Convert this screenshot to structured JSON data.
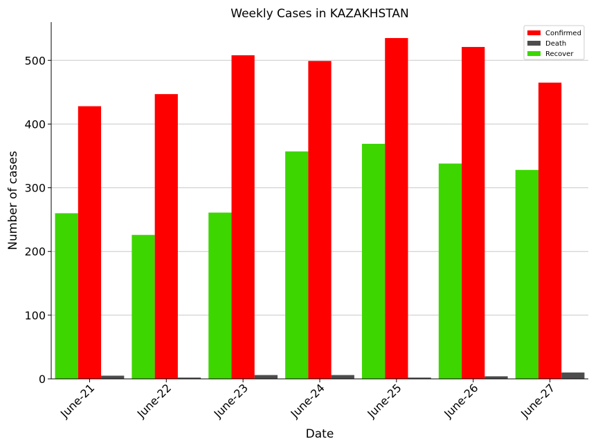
{
  "chart_data": {
    "type": "bar",
    "title": "Weekly Cases in KAZAKHSTAN",
    "xlabel": "Date",
    "ylabel": "Number of cases",
    "categories": [
      "June-21",
      "June-22",
      "June-23",
      "June-24",
      "June-25",
      "June-26",
      "June-27"
    ],
    "series": [
      {
        "name": "Recover",
        "color": "#3dd600",
        "values": [
          260,
          226,
          261,
          357,
          369,
          338,
          328
        ]
      },
      {
        "name": "Confirmed",
        "color": "#ff0000",
        "values": [
          428,
          447,
          508,
          499,
          535,
          521,
          465
        ]
      },
      {
        "name": "Death",
        "color": "#4d4d4d",
        "values": [
          5,
          2,
          6,
          6,
          2,
          4,
          10
        ]
      }
    ],
    "legend_order": [
      "Confirmed",
      "Death",
      "Recover"
    ],
    "ylim": [
      0,
      560
    ],
    "yticks": [
      0,
      100,
      200,
      300,
      400,
      500
    ],
    "grid": "horizontal",
    "legend_position": "top-right"
  }
}
